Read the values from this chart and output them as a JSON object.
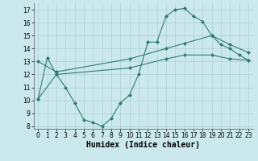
{
  "line1_x": [
    0,
    1,
    2,
    3,
    4,
    5,
    6,
    7,
    8,
    9,
    10,
    11,
    12,
    13,
    14,
    15,
    16,
    17,
    18,
    19,
    20,
    21,
    22,
    23
  ],
  "line1_y": [
    10.1,
    13.3,
    12.0,
    11.0,
    9.8,
    8.5,
    8.3,
    8.0,
    8.6,
    9.8,
    10.4,
    12.0,
    14.5,
    14.5,
    16.5,
    17.0,
    17.1,
    16.5,
    16.1,
    15.0,
    14.3,
    14.0,
    13.5,
    13.1
  ],
  "line2_x": [
    0,
    2,
    10,
    14,
    16,
    19,
    21,
    23
  ],
  "line2_y": [
    13.0,
    12.2,
    13.2,
    14.0,
    14.4,
    15.0,
    14.3,
    13.7
  ],
  "line3_x": [
    0,
    2,
    10,
    14,
    16,
    19,
    21,
    23
  ],
  "line3_y": [
    10.1,
    12.0,
    12.5,
    13.2,
    13.5,
    13.5,
    13.2,
    13.1
  ],
  "color": "#2E7D6E",
  "bg_color": "#CBE9EC",
  "grid_color": "#AACFD3",
  "xlabel": "Humidex (Indice chaleur)",
  "ylim": [
    7.8,
    17.5
  ],
  "xlim": [
    -0.5,
    23.5
  ],
  "yticks": [
    8,
    9,
    10,
    11,
    12,
    13,
    14,
    15,
    16,
    17
  ],
  "xticks": [
    0,
    1,
    2,
    3,
    4,
    5,
    6,
    7,
    8,
    9,
    10,
    11,
    12,
    13,
    14,
    15,
    16,
    17,
    18,
    19,
    20,
    21,
    22,
    23
  ],
  "xlabel_fontsize": 7,
  "tick_fontsize": 5.5,
  "marker": "D",
  "markersize": 2.0,
  "linewidth": 0.8
}
